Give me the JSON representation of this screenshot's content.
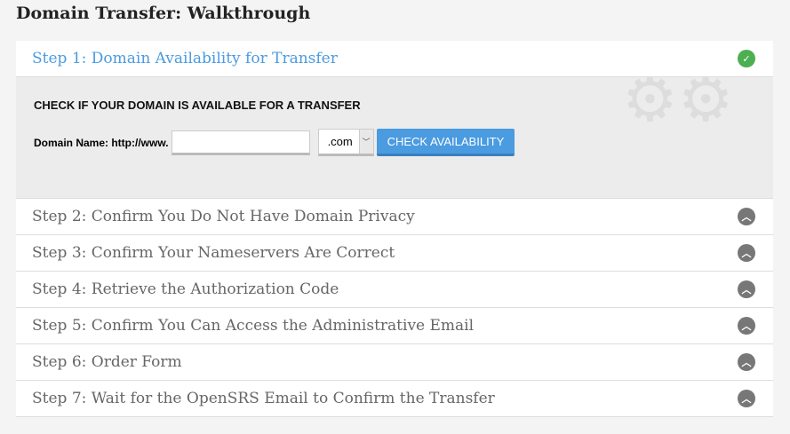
{
  "title": "Domain Transfer: Walkthrough",
  "steps": [
    {
      "label": "Step 1: Domain Availability for Transfer",
      "state": "complete"
    },
    {
      "label": "Step 2: Confirm You Do Not Have Domain Privacy"
    },
    {
      "label": "Step 3: Confirm Your Nameservers Are Correct"
    },
    {
      "label": "Step 4: Retrieve the Authorization Code"
    },
    {
      "label": "Step 5: Confirm You Can Access the Administrative Email"
    },
    {
      "label": "Step 6: Order Form"
    },
    {
      "label": "Step 7: Wait for the OpenSRS Email to Confirm the Transfer"
    }
  ],
  "form": {
    "heading": "CHECK IF YOUR DOMAIN IS AVAILABLE FOR A TRANSFER",
    "label": "Domain Name: http://www.",
    "domain_value": "",
    "tld": ".com",
    "button": "CHECK AVAILABILITY"
  },
  "colors": {
    "accent": "#4a9be0",
    "check": "#4caf50"
  }
}
